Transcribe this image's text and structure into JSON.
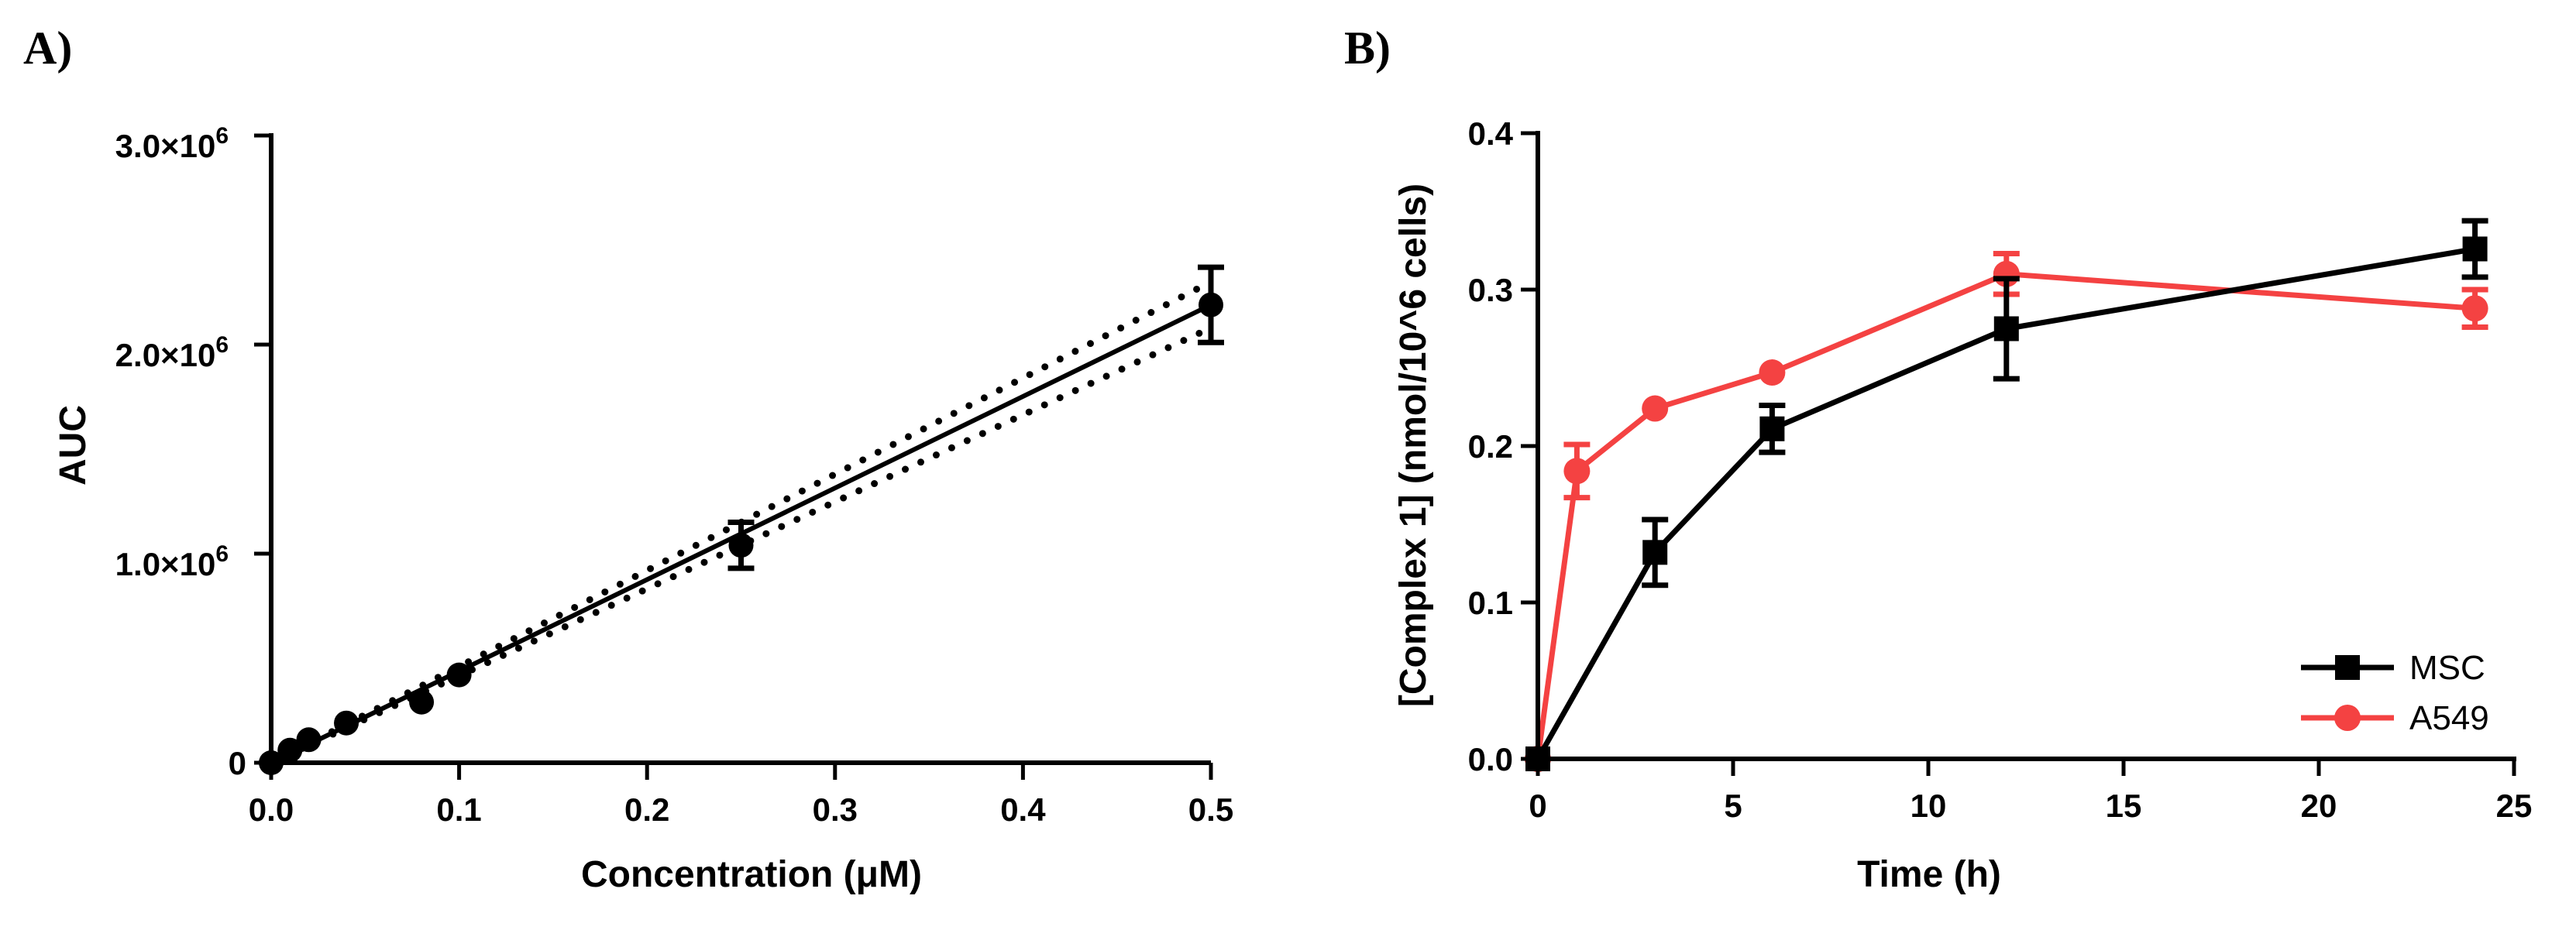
{
  "chart_data": [
    {
      "panel_label": "A)",
      "type": "scatter",
      "xlabel": "Concentration (μM)",
      "ylabel": "AUC",
      "xlim": [
        0,
        0.5
      ],
      "ylim": [
        0,
        3000000
      ],
      "x_ticks": [
        {
          "value": 0.0,
          "label": "0.0"
        },
        {
          "value": 0.1,
          "label": "0.1"
        },
        {
          "value": 0.2,
          "label": "0.2"
        },
        {
          "value": 0.3,
          "label": "0.3"
        },
        {
          "value": 0.4,
          "label": "0.4"
        },
        {
          "value": 0.5,
          "label": "0.5"
        }
      ],
      "y_ticks": [
        {
          "value": 0,
          "mantissa": "0",
          "exp": ""
        },
        {
          "value": 1000000,
          "mantissa": "1.0×10",
          "exp": "6"
        },
        {
          "value": 2000000,
          "mantissa": "2.0×10",
          "exp": "6"
        },
        {
          "value": 3000000,
          "mantissa": "3.0×10",
          "exp": "6"
        }
      ],
      "series": [
        {
          "color": "#000000",
          "points": [
            {
              "x": 0.0,
              "y": 0
            },
            {
              "x": 0.01,
              "y": 60000
            },
            {
              "x": 0.02,
              "y": 110000
            },
            {
              "x": 0.04,
              "y": 190000
            },
            {
              "x": 0.08,
              "y": 290000
            },
            {
              "x": 0.1,
              "y": 420000
            },
            {
              "x": 0.25,
              "y": 1040000,
              "err": 110000
            },
            {
              "x": 0.5,
              "y": 2190000,
              "err": 180000
            }
          ]
        }
      ],
      "fit_line": {
        "x": [
          0,
          0.5
        ],
        "y": [
          0,
          2190000
        ]
      },
      "confidence_band": {
        "upper": {
          "x": [
            0,
            0.5
          ],
          "y": [
            0,
            2300000
          ]
        },
        "lower": {
          "x": [
            0,
            0.5
          ],
          "y": [
            0,
            2080000
          ]
        }
      },
      "grid": false
    },
    {
      "panel_label": "B)",
      "type": "line",
      "xlabel": "Time (h)",
      "ylabel": "[Complex 1] (nmol/10^6 cells)",
      "xlim": [
        0,
        25
      ],
      "ylim": [
        0,
        0.4
      ],
      "x_ticks": [
        {
          "value": 0,
          "label": "0"
        },
        {
          "value": 5,
          "label": "5"
        },
        {
          "value": 10,
          "label": "10"
        },
        {
          "value": 15,
          "label": "15"
        },
        {
          "value": 20,
          "label": "20"
        },
        {
          "value": 25,
          "label": "25"
        }
      ],
      "y_ticks": [
        {
          "value": 0.0,
          "label": "0.0"
        },
        {
          "value": 0.1,
          "label": "0.1"
        },
        {
          "value": 0.2,
          "label": "0.2"
        },
        {
          "value": 0.3,
          "label": "0.3"
        },
        {
          "value": 0.4,
          "label": "0.4"
        }
      ],
      "legend_position": "bottom-right",
      "series": [
        {
          "name": "MSC",
          "color": "#000000",
          "marker": "square",
          "x": [
            0,
            3,
            6,
            12,
            24
          ],
          "y": [
            0.0,
            0.132,
            0.211,
            0.275,
            0.326
          ],
          "err": [
            0.0,
            0.021,
            0.015,
            0.032,
            0.018
          ]
        },
        {
          "name": "A549",
          "color": "#f44242",
          "marker": "circle",
          "x": [
            0,
            1,
            3,
            6,
            12,
            24
          ],
          "y": [
            0.0,
            0.184,
            0.224,
            0.247,
            0.31,
            0.288
          ],
          "err": [
            0.0,
            0.017,
            0.0,
            0.0,
            0.013,
            0.012
          ]
        }
      ],
      "grid": false
    }
  ]
}
